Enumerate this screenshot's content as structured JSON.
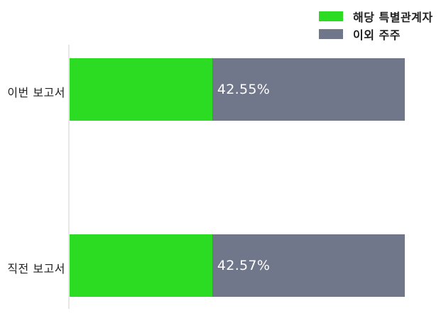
{
  "chart_data": {
    "type": "bar",
    "orientation": "horizontal",
    "stacked": true,
    "unit": "%",
    "title": "",
    "categories": [
      "이번 보고서",
      "직전 보고서"
    ],
    "series": [
      {
        "name": "해당 특별관계자",
        "color": "#2CDC22",
        "values": [
          42.55,
          42.57
        ]
      },
      {
        "name": "이외 주주",
        "color": "#71778A",
        "values": [
          57.45,
          57.43
        ]
      }
    ],
    "value_labels": [
      "42.55%",
      "42.57%"
    ],
    "xlim": [
      0,
      100
    ],
    "legend_position": "top-right",
    "grid": false,
    "axis_line": "left-vertical"
  },
  "colors": {
    "series_green": "#2CDC22",
    "series_gray": "#71778A",
    "axis_line": "#E6E6E6",
    "category_text": "#222222",
    "legend_text": "#1F1F1F",
    "value_text": "#FFFFFF",
    "background": "#FFFFFF"
  }
}
